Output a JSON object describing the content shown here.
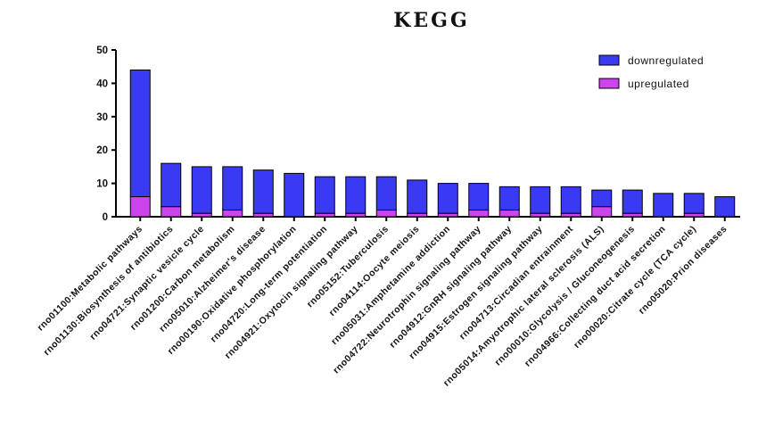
{
  "chart_data": {
    "type": "bar",
    "stacked": true,
    "title": "KEGG",
    "xlabel": "",
    "ylabel": "",
    "ylim": [
      0,
      50
    ],
    "yticks": [
      0,
      10,
      20,
      30,
      40,
      50
    ],
    "grid": false,
    "legend_position": "top-right",
    "categories": [
      "rno01100:Metabolic pathways",
      "rno01130:Biosynthesis of antibiotics",
      "rno04721:Synaptic vesicle cycle",
      "rno01200:Carbon metabolism",
      "rno05010:Alzheimer's disease",
      "rno00190:Oxidative phosphorylation",
      "rno04720:Long-term potentiation",
      "rno04921:Oxytocin signaling pathway",
      "rno05152:Tuberculosis",
      "rno04114:Oocyte meiosis",
      "rno05031:Amphetamine addiction",
      "rno04722:Neurotrophin signaling pathway",
      "rno04912:GnRH signaling pathway",
      "rno04915:Estrogen signaling pathway",
      "rno04713:Circadian entrainment",
      "rno05014:Amyotrophic lateral sclerosis (ALS)",
      "rno00010:Glycolysis / Gluconeogenesis",
      "rno04966:Collecting duct acid secretion",
      "rno00020:Citrate cycle (TCA cycle)",
      "rno05020:Prion diseases"
    ],
    "series": [
      {
        "name": "upregulated",
        "color": "#cc44ee",
        "values": [
          6,
          3,
          1,
          2,
          1,
          0,
          1,
          1,
          2,
          1,
          1,
          2,
          2,
          1,
          1,
          3,
          1,
          0,
          1,
          0
        ]
      },
      {
        "name": "downregulated",
        "color": "#3a3af2",
        "values": [
          38,
          13,
          14,
          13,
          13,
          13,
          11,
          11,
          10,
          10,
          9,
          8,
          7,
          8,
          8,
          5,
          7,
          7,
          6,
          6
        ]
      }
    ],
    "legend_order": [
      "downregulated",
      "upregulated"
    ]
  }
}
